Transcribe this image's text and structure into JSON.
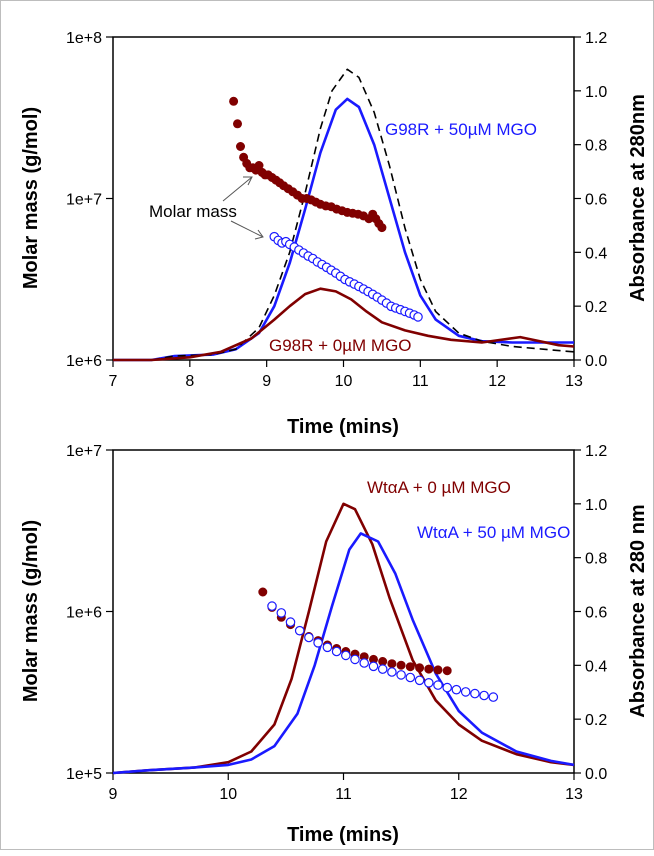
{
  "chart_data": [
    {
      "type": "line",
      "xlabel": "Time (mins)",
      "ylabel": "Molar mass (g/mol)",
      "y2label": "Absorbance at 280nm",
      "x_ticks": [
        "7",
        "8",
        "9",
        "10",
        "11",
        "12",
        "13"
      ],
      "y_ticks": [
        "1e+6",
        "1e+7",
        "1e+8"
      ],
      "y2_ticks": [
        "0.0",
        "0.2",
        "0.4",
        "0.6",
        "0.8",
        "1.0",
        "1.2"
      ],
      "xlim": [
        7,
        13
      ],
      "ylim": [
        1000000,
        100000000
      ],
      "yscale": "log",
      "y2lim": [
        0,
        1.2
      ],
      "annotations": {
        "blue": "G98R + 50µM MGO",
        "red": "G98R + 0µM MGO",
        "molar_mass": "Molar mass"
      },
      "series": [
        {
          "axis": "y2",
          "style": "line",
          "color": "#1a1aff",
          "x": [
            7.0,
            7.5,
            7.8,
            8.3,
            8.6,
            8.9,
            9.1,
            9.3,
            9.5,
            9.7,
            9.9,
            10.05,
            10.2,
            10.4,
            10.6,
            10.8,
            11.0,
            11.2,
            11.5,
            11.8,
            12.2,
            12.6,
            13.0
          ],
          "y": [
            0.0,
            0.0,
            0.015,
            0.02,
            0.04,
            0.1,
            0.2,
            0.36,
            0.56,
            0.77,
            0.93,
            0.97,
            0.94,
            0.8,
            0.6,
            0.4,
            0.24,
            0.15,
            0.09,
            0.07,
            0.065,
            0.065,
            0.065
          ]
        },
        {
          "axis": "y2",
          "style": "dashed",
          "color": "#000000",
          "x": [
            7.0,
            7.5,
            7.8,
            8.3,
            8.6,
            8.9,
            9.1,
            9.3,
            9.5,
            9.7,
            9.85,
            10.05,
            10.2,
            10.4,
            10.6,
            10.8,
            11.0,
            11.2,
            11.5,
            11.8,
            12.2,
            12.6,
            13.0
          ],
          "y": [
            0.0,
            0.0,
            0.015,
            0.02,
            0.04,
            0.12,
            0.24,
            0.4,
            0.62,
            0.86,
            1.0,
            1.08,
            1.05,
            0.92,
            0.72,
            0.49,
            0.3,
            0.18,
            0.1,
            0.07,
            0.05,
            0.04,
            0.03
          ]
        },
        {
          "axis": "y2",
          "style": "line",
          "color": "#800000",
          "x": [
            7.0,
            7.5,
            8.0,
            8.4,
            8.8,
            9.1,
            9.3,
            9.5,
            9.7,
            9.9,
            10.1,
            10.3,
            10.5,
            10.8,
            11.1,
            11.4,
            11.8,
            12.3,
            12.8,
            13.0
          ],
          "y": [
            0.0,
            0.0,
            0.01,
            0.03,
            0.08,
            0.15,
            0.2,
            0.245,
            0.265,
            0.255,
            0.225,
            0.18,
            0.14,
            0.11,
            0.09,
            0.075,
            0.065,
            0.085,
            0.055,
            0.05
          ]
        },
        {
          "axis": "y",
          "style": "filled-dots",
          "color": "#800000",
          "x": [
            8.57,
            8.62,
            8.66,
            8.7,
            8.74,
            8.78,
            8.82,
            8.86,
            8.9,
            8.94,
            8.98,
            9.02,
            9.07,
            9.12,
            9.17,
            9.22,
            9.28,
            9.34,
            9.4,
            9.46,
            9.52,
            9.58,
            9.64,
            9.7,
            9.77,
            9.84,
            9.91,
            9.98,
            10.05,
            10.12,
            10.19,
            10.26,
            10.33,
            10.38,
            10.42,
            10.46,
            10.5
          ],
          "y": [
            40000000,
            29000000,
            21000000,
            18000000,
            16500000,
            15500000,
            15500000,
            15000000,
            16000000,
            14500000,
            14000000,
            14000000,
            13500000,
            13000000,
            12500000,
            12000000,
            11500000,
            11000000,
            10500000,
            10000000,
            10000000,
            9800000,
            9500000,
            9200000,
            9000000,
            8900000,
            8600000,
            8400000,
            8200000,
            8100000,
            8000000,
            7800000,
            7500000,
            8000000,
            7500000,
            7000000,
            6600000
          ]
        },
        {
          "axis": "y",
          "style": "open-dots",
          "color": "#1a1aff",
          "x": [
            9.1,
            9.15,
            9.2,
            9.25,
            9.3,
            9.36,
            9.42,
            9.48,
            9.54,
            9.6,
            9.66,
            9.72,
            9.78,
            9.84,
            9.9,
            9.96,
            10.02,
            10.08,
            10.14,
            10.2,
            10.26,
            10.32,
            10.38,
            10.44,
            10.5,
            10.56,
            10.62,
            10.68,
            10.74,
            10.8,
            10.86,
            10.92,
            10.97
          ],
          "y": [
            5800000,
            5500000,
            5300000,
            5400000,
            5200000,
            5000000,
            4800000,
            4600000,
            4400000,
            4250000,
            4050000,
            3900000,
            3750000,
            3600000,
            3450000,
            3300000,
            3150000,
            3050000,
            2950000,
            2850000,
            2750000,
            2650000,
            2550000,
            2450000,
            2350000,
            2250000,
            2150000,
            2100000,
            2050000,
            2000000,
            1950000,
            1900000,
            1850000
          ]
        }
      ]
    },
    {
      "type": "line",
      "xlabel": "Time (mins)",
      "ylabel": "Molar mass (g/mol)",
      "y2label": "Absorbance at 280 nm",
      "x_ticks": [
        "9",
        "10",
        "11",
        "12",
        "13"
      ],
      "y_ticks": [
        "1e+5",
        "1e+6",
        "1e+7"
      ],
      "y2_ticks": [
        "0.0",
        "0.2",
        "0.4",
        "0.6",
        "0.8",
        "1.0",
        "1.2"
      ],
      "xlim": [
        9,
        13
      ],
      "ylim": [
        100000,
        10000000
      ],
      "yscale": "log",
      "y2lim": [
        0,
        1.2
      ],
      "annotations": {
        "red": "WtαA + 0 µM MGO",
        "blue": "WtαA + 50 µM MGO"
      },
      "series": [
        {
          "axis": "y2",
          "style": "line",
          "color": "#800000",
          "x": [
            9.0,
            9.3,
            9.7,
            10.0,
            10.2,
            10.4,
            10.55,
            10.7,
            10.85,
            11.0,
            11.1,
            11.25,
            11.4,
            11.6,
            11.8,
            12.0,
            12.2,
            12.5,
            12.8,
            13.0
          ],
          "y": [
            0.0,
            0.01,
            0.02,
            0.04,
            0.08,
            0.18,
            0.35,
            0.6,
            0.86,
            1.0,
            0.98,
            0.85,
            0.65,
            0.42,
            0.27,
            0.18,
            0.12,
            0.07,
            0.04,
            0.03
          ]
        },
        {
          "axis": "y2",
          "style": "line",
          "color": "#1a1aff",
          "x": [
            9.0,
            9.3,
            9.7,
            10.0,
            10.2,
            10.4,
            10.6,
            10.75,
            10.9,
            11.05,
            11.15,
            11.3,
            11.45,
            11.6,
            11.8,
            12.0,
            12.2,
            12.5,
            12.8,
            13.0
          ],
          "y": [
            0.0,
            0.01,
            0.02,
            0.03,
            0.05,
            0.1,
            0.22,
            0.4,
            0.62,
            0.83,
            0.89,
            0.86,
            0.74,
            0.57,
            0.37,
            0.23,
            0.15,
            0.08,
            0.045,
            0.03
          ]
        },
        {
          "axis": "y",
          "style": "filled-dots",
          "color": "#800000",
          "x": [
            10.3,
            10.38,
            10.46,
            10.54,
            10.62,
            10.7,
            10.78,
            10.86,
            10.94,
            11.02,
            11.1,
            11.18,
            11.26,
            11.34,
            11.42,
            11.5,
            11.58,
            11.66,
            11.74,
            11.82,
            11.9
          ],
          "y": [
            1320000,
            1060000,
            920000,
            830000,
            760000,
            700000,
            660000,
            620000,
            590000,
            565000,
            545000,
            525000,
            505000,
            490000,
            475000,
            465000,
            455000,
            448000,
            440000,
            435000,
            430000
          ]
        },
        {
          "axis": "y",
          "style": "open-dots",
          "color": "#1a1aff",
          "x": [
            10.38,
            10.46,
            10.54,
            10.62,
            10.7,
            10.78,
            10.86,
            10.94,
            11.02,
            11.1,
            11.18,
            11.26,
            11.34,
            11.42,
            11.5,
            11.58,
            11.66,
            11.74,
            11.82,
            11.9,
            11.98,
            12.06,
            12.14,
            12.22,
            12.3
          ],
          "y": [
            1080000,
            980000,
            860000,
            760000,
            690000,
            640000,
            600000,
            565000,
            535000,
            505000,
            480000,
            458000,
            440000,
            422000,
            405000,
            390000,
            375000,
            362000,
            350000,
            338000,
            328000,
            318000,
            310000,
            302000,
            295000
          ]
        }
      ]
    }
  ]
}
